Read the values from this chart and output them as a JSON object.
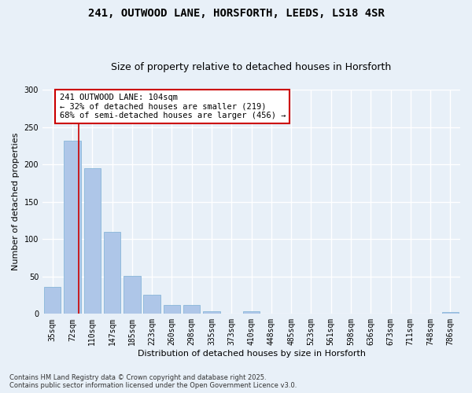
{
  "title_line1": "241, OUTWOOD LANE, HORSFORTH, LEEDS, LS18 4SR",
  "title_line2": "Size of property relative to detached houses in Horsforth",
  "xlabel": "Distribution of detached houses by size in Horsforth",
  "ylabel": "Number of detached properties",
  "categories": [
    "35sqm",
    "72sqm",
    "110sqm",
    "147sqm",
    "185sqm",
    "223sqm",
    "260sqm",
    "298sqm",
    "335sqm",
    "373sqm",
    "410sqm",
    "448sqm",
    "485sqm",
    "523sqm",
    "561sqm",
    "598sqm",
    "636sqm",
    "673sqm",
    "711sqm",
    "748sqm",
    "786sqm"
  ],
  "values": [
    36,
    232,
    195,
    110,
    51,
    26,
    12,
    12,
    4,
    0,
    4,
    0,
    0,
    0,
    0,
    0,
    0,
    0,
    0,
    0,
    2
  ],
  "bar_color": "#aec6e8",
  "bar_edge_color": "#7bafd4",
  "vline_color": "#cc0000",
  "vline_x": 1.3,
  "annotation_text": "241 OUTWOOD LANE: 104sqm\n← 32% of detached houses are smaller (219)\n68% of semi-detached houses are larger (456) →",
  "annotation_box_color": "#ffffff",
  "annotation_box_edge_color": "#cc0000",
  "ylim": [
    0,
    300
  ],
  "yticks": [
    0,
    50,
    100,
    150,
    200,
    250,
    300
  ],
  "background_color": "#e8f0f8",
  "plot_bg_color": "#e8f0f8",
  "grid_color": "#ffffff",
  "footnote": "Contains HM Land Registry data © Crown copyright and database right 2025.\nContains public sector information licensed under the Open Government Licence v3.0.",
  "title_fontsize": 10,
  "subtitle_fontsize": 9,
  "axis_label_fontsize": 8,
  "tick_fontsize": 7,
  "annotation_fontsize": 7.5
}
